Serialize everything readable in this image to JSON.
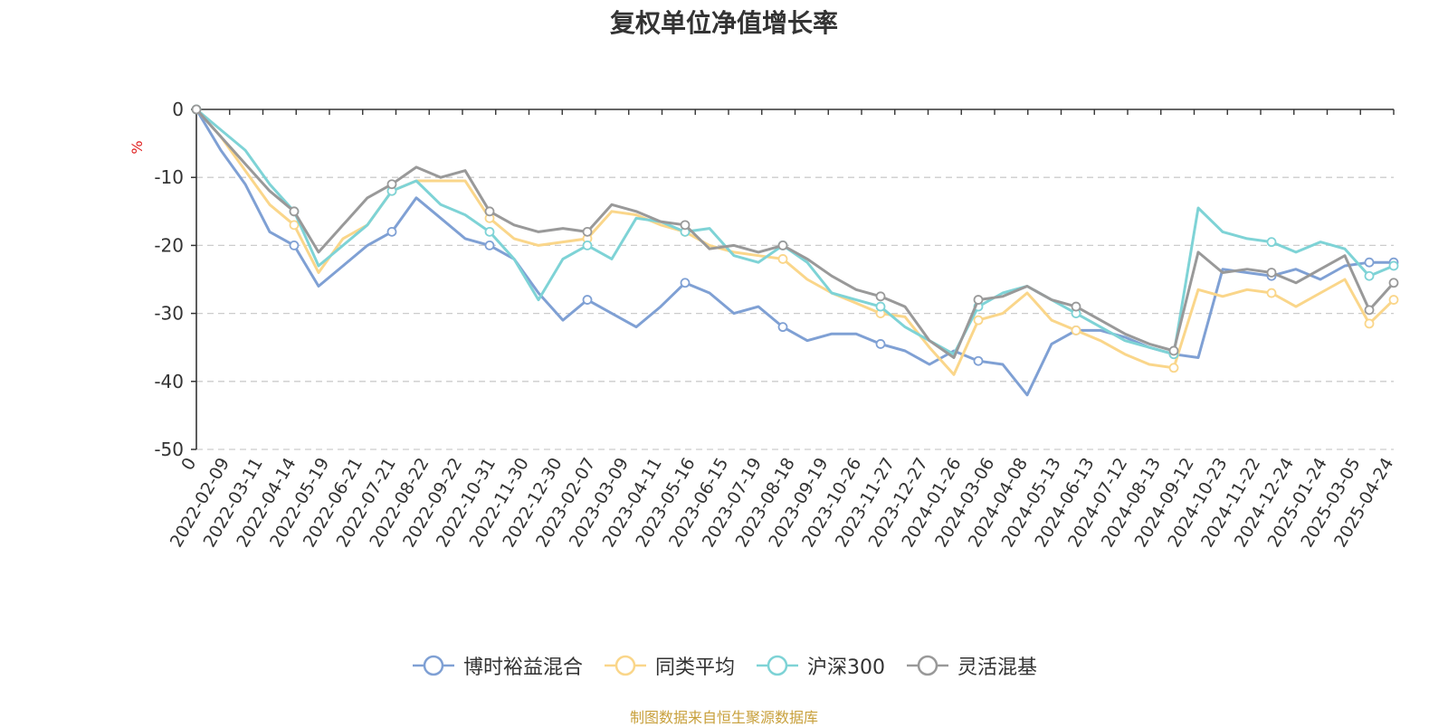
{
  "title": "复权单位净值增长率",
  "source_note": "制图数据来自恒生聚源数据库",
  "source_color": "#c8a03c",
  "chart_data": {
    "type": "line",
    "title": "复权单位净值增长率",
    "ylabel": "%",
    "ylim": [
      -50,
      0
    ],
    "yticks": [
      0,
      -10,
      -20,
      -30,
      -40,
      -50
    ],
    "grid": true,
    "legend_position": "bottom",
    "x_tick_labels": [
      "0",
      "2022-02-09",
      "2022-03-11",
      "2022-04-14",
      "2022-05-19",
      "2022-06-21",
      "2022-07-21",
      "2022-08-22",
      "2022-09-22",
      "2022-10-31",
      "2022-11-30",
      "2022-12-30",
      "2023-02-07",
      "2023-03-09",
      "2023-04-11",
      "2023-05-16",
      "2023-06-15",
      "2023-07-19",
      "2023-08-18",
      "2023-09-19",
      "2023-10-26",
      "2023-11-27",
      "2023-12-27",
      "2024-01-26",
      "2024-03-06",
      "2024-04-08",
      "2024-05-13",
      "2024-06-13",
      "2024-07-12",
      "2024-08-13",
      "2024-09-12",
      "2024-10-23",
      "2024-11-22",
      "2024-12-24",
      "2025-01-24",
      "2025-03-05",
      "2025-04-24"
    ],
    "series": [
      {
        "name": "博时裕益混合",
        "color": "#7fa0d4",
        "values": [
          0,
          -6,
          -11,
          -18,
          -20,
          -26,
          -23,
          -20,
          -18,
          -13,
          -16,
          -19,
          -20,
          -22,
          -27,
          -31,
          -28,
          -30,
          -32,
          -29,
          -25.5,
          -27,
          -30,
          -29,
          -32,
          -34,
          -33,
          -33,
          -34.5,
          -35.5,
          -37.5,
          -35.5,
          -37,
          -37.5,
          -42,
          -34.5,
          -32.5,
          -32.5,
          -33.5,
          -35,
          -36,
          -36.5,
          -23.5,
          -24,
          -24.5,
          -23.5,
          -25,
          -23,
          -22.5,
          -22.5
        ]
      },
      {
        "name": "同类平均",
        "color": "#fad68a",
        "values": [
          0,
          -4,
          -9,
          -14,
          -17,
          -24,
          -19,
          -17,
          -12,
          -10.5,
          -10.5,
          -10.5,
          -16,
          -19,
          -20,
          -19.5,
          -19,
          -15,
          -15.5,
          -17,
          -18,
          -20,
          -21,
          -21.5,
          -22,
          -25,
          -27,
          -28.5,
          -30,
          -30.5,
          -35,
          -39,
          -31,
          -30,
          -27,
          -31,
          -32.5,
          -34,
          -36,
          -37.5,
          -38,
          -26.5,
          -27.5,
          -26.5,
          -27,
          -29,
          -27,
          -25,
          -31.5,
          -28
        ]
      },
      {
        "name": "沪深300",
        "color": "#7ed3d6",
        "values": [
          0,
          -3,
          -6,
          -11,
          -15,
          -23,
          -20,
          -17,
          -12,
          -10.5,
          -14,
          -15.5,
          -18,
          -22,
          -28,
          -22,
          -20,
          -22,
          -16,
          -16.5,
          -18,
          -17.5,
          -21.5,
          -22.5,
          -20,
          -22.5,
          -27,
          -28,
          -29,
          -32,
          -34,
          -36,
          -29,
          -27,
          -26,
          -28,
          -30,
          -32,
          -34,
          -35,
          -36,
          -14.5,
          -18,
          -19,
          -19.5,
          -21,
          -19.5,
          -20.5,
          -24.5,
          -23
        ]
      },
      {
        "name": "灵活混基",
        "color": "#999999",
        "values": [
          0,
          -4,
          -8,
          -12,
          -15,
          -21,
          -17,
          -13,
          -11,
          -8.5,
          -10,
          -9,
          -15,
          -17,
          -18,
          -17.5,
          -18,
          -14,
          -15,
          -16.5,
          -17,
          -20.5,
          -20,
          -21,
          -20,
          -22,
          -24.5,
          -26.5,
          -27.5,
          -29,
          -34,
          -36.5,
          -28,
          -27.5,
          -26,
          -28,
          -29,
          -31,
          -33,
          -34.5,
          -35.5,
          -21,
          -24,
          -23.5,
          -24,
          -25.5,
          -23.5,
          -21.5,
          -29.5,
          -25.5
        ]
      }
    ]
  }
}
